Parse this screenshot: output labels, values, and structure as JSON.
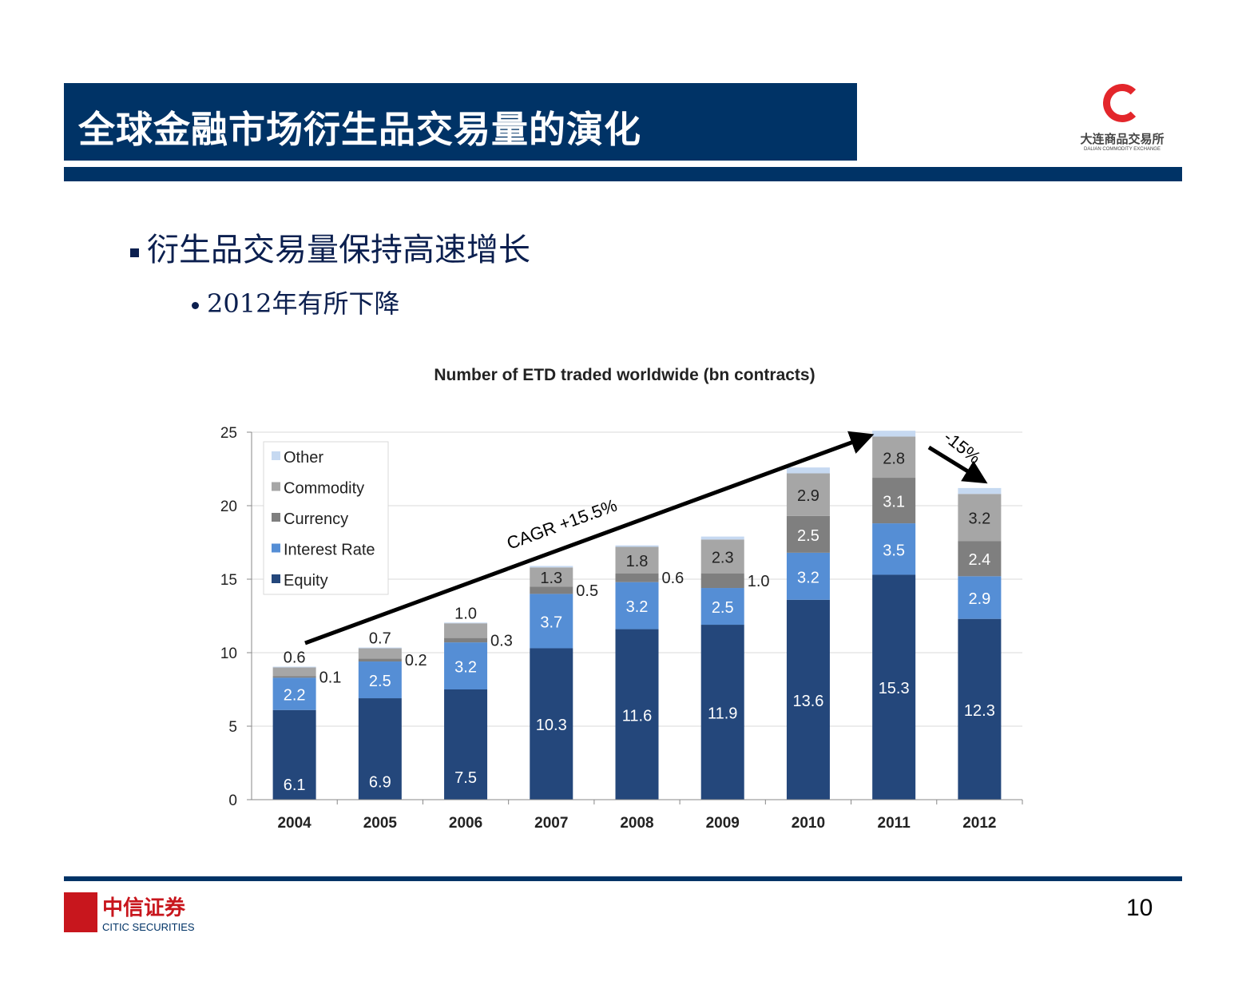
{
  "header": {
    "title": "全球金融市场衍生品交易量的演化",
    "logo_right_cn": "大连商品交易所",
    "logo_right_en": "DALIAN COMMODITY EXCHANGE"
  },
  "bullets": {
    "level1": "衍生品交易量保持高速增长",
    "level2": "2012年有所下降"
  },
  "footer": {
    "logo_cn": "中信证券",
    "logo_en": "CITIC SECURITIES",
    "logo_seal": "中信證券",
    "page_number": "10"
  },
  "chart_data": {
    "type": "bar",
    "stacked": true,
    "title": "Number of ETD traded worldwide (bn contracts)",
    "categories": [
      "2004",
      "2005",
      "2006",
      "2007",
      "2008",
      "2009",
      "2010",
      "2011",
      "2012"
    ],
    "ylim": [
      0,
      25
    ],
    "yticks": [
      "0",
      "5",
      "10",
      "15",
      "20",
      "25"
    ],
    "grid": true,
    "legend_position": "top-left",
    "series": [
      {
        "name": "Equity",
        "color": "#24477b",
        "values": [
          6.1,
          6.9,
          7.5,
          10.3,
          11.6,
          11.9,
          13.6,
          15.3,
          12.3
        ]
      },
      {
        "name": "Interest Rate",
        "color": "#558ed5",
        "values": [
          2.2,
          2.5,
          3.2,
          3.7,
          3.2,
          2.5,
          3.2,
          3.5,
          2.9
        ]
      },
      {
        "name": "Currency",
        "color": "#7f7f7f",
        "values": [
          0.1,
          0.2,
          0.3,
          0.5,
          0.6,
          1.0,
          2.5,
          3.1,
          2.4
        ]
      },
      {
        "name": "Commodity",
        "color": "#a6a6a6",
        "values": [
          0.6,
          0.7,
          1.0,
          1.3,
          1.8,
          2.3,
          2.9,
          2.8,
          3.2
        ]
      },
      {
        "name": "Other",
        "color": "#c6d9f1",
        "values": [
          0.05,
          0.05,
          0.05,
          0.1,
          0.1,
          0.2,
          0.4,
          0.4,
          0.4
        ]
      }
    ],
    "annotations": [
      "CAGR +15.5%",
      "-15%"
    ]
  }
}
